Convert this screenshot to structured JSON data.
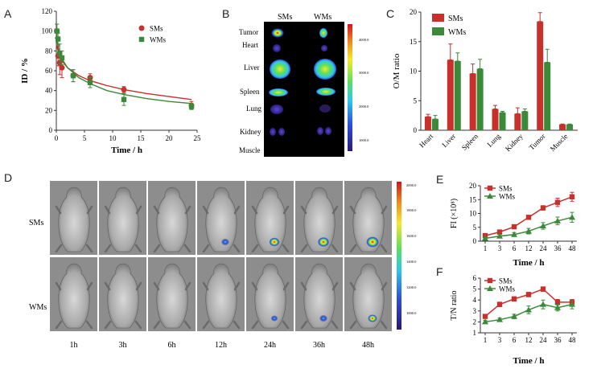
{
  "colors": {
    "sms": "#c8302c",
    "wms": "#3a8a3a",
    "axis": "#333333"
  },
  "panel_labels": [
    "A",
    "B",
    "C",
    "D",
    "E",
    "F"
  ],
  "chart_data": [
    {
      "panel": "A",
      "type": "scatter",
      "xlabel": "Time / h",
      "ylabel": "ID / %",
      "xlim": [
        0,
        25
      ],
      "ylim": [
        0,
        120
      ],
      "xticks": [
        0,
        5,
        10,
        15,
        20,
        25
      ],
      "yticks": [
        0,
        20,
        40,
        60,
        80,
        100,
        120
      ],
      "legend": "top-right",
      "series": [
        {
          "name": "SMs",
          "color_key": "sms",
          "marker": "circle",
          "x": [
            0.1,
            0.3,
            0.6,
            1,
            3,
            6,
            12,
            24
          ],
          "y": [
            100,
            75,
            68,
            63,
            55,
            53,
            41,
            25
          ],
          "err": [
            7,
            10,
            12,
            10,
            6,
            4,
            3,
            4
          ]
        },
        {
          "name": "WMs",
          "color_key": "wms",
          "marker": "square",
          "x": [
            0.1,
            0.3,
            0.6,
            1,
            3,
            6,
            12,
            24
          ],
          "y": [
            100,
            92,
            77,
            73,
            55,
            48,
            31,
            24
          ],
          "err": [
            7,
            6,
            10,
            7,
            6,
            5,
            6,
            3
          ]
        }
      ],
      "fit_curves": [
        {
          "name": "SMs",
          "color_key": "sms",
          "x": [
            0.1,
            0.5,
            1,
            2,
            4,
            6,
            9,
            12,
            16,
            20,
            24
          ],
          "y": [
            85,
            76,
            70,
            63,
            55,
            50,
            45,
            41,
            37,
            34,
            31
          ]
        },
        {
          "name": "WMs",
          "color_key": "wms",
          "x": [
            0.1,
            0.5,
            1,
            2,
            4,
            6,
            9,
            12,
            16,
            20,
            24
          ],
          "y": [
            90,
            80,
            72,
            63,
            53,
            47,
            40,
            36,
            32,
            29,
            27
          ]
        }
      ]
    },
    {
      "panel": "C",
      "type": "bar",
      "ylabel": "O/M ratio",
      "ylim": [
        0,
        20
      ],
      "yticks": [
        0,
        5,
        10,
        15,
        20
      ],
      "legend": "top-left",
      "categories": [
        "Heart",
        "Liver",
        "Spleen",
        "Lung",
        "Kidney",
        "Tumor",
        "Muscle"
      ],
      "series": [
        {
          "name": "SMs",
          "color_key": "sms",
          "values": [
            2.3,
            11.9,
            9.6,
            3.6,
            2.8,
            18.4,
            1.0
          ],
          "err": [
            0.4,
            2.7,
            1.6,
            0.6,
            1.0,
            1.5,
            0.05
          ]
        },
        {
          "name": "WMs",
          "color_key": "wms",
          "values": [
            1.9,
            11.7,
            10.4,
            3.0,
            3.2,
            11.5,
            1.0
          ],
          "err": [
            0.6,
            1.4,
            1.6,
            0.2,
            0.4,
            2.2,
            0.05
          ]
        }
      ]
    },
    {
      "panel": "E",
      "type": "line",
      "xlabel": "Time / h",
      "ylabel": "FI (×10⁸)",
      "categories": [
        "1",
        "3",
        "6",
        "12",
        "24",
        "36",
        "48"
      ],
      "ylim": [
        0,
        20
      ],
      "yticks": [
        0,
        5,
        10,
        15,
        20
      ],
      "legend": "top-left",
      "series": [
        {
          "name": "SMs",
          "color_key": "sms",
          "marker": "square",
          "values": [
            2.0,
            3.3,
            5.2,
            8.6,
            12.0,
            14.0,
            16.0
          ],
          "err": [
            0.4,
            0.5,
            0.6,
            0.7,
            0.8,
            1.5,
            1.6
          ]
        },
        {
          "name": "WMs",
          "color_key": "wms",
          "marker": "triangle",
          "values": [
            1.0,
            1.8,
            2.4,
            3.6,
            5.5,
            7.3,
            8.6
          ],
          "err": [
            0.4,
            0.6,
            0.7,
            1.0,
            1.2,
            1.4,
            1.8
          ]
        }
      ]
    },
    {
      "panel": "F",
      "type": "line",
      "xlabel": "Time / h",
      "ylabel": "T/N ratio",
      "categories": [
        "1",
        "3",
        "6",
        "12",
        "24",
        "36",
        "48"
      ],
      "ylim": [
        1,
        6
      ],
      "yticks": [
        1,
        2,
        3,
        4,
        5,
        6
      ],
      "legend": "top-left",
      "series": [
        {
          "name": "SMs",
          "color_key": "sms",
          "marker": "square",
          "values": [
            2.5,
            3.6,
            4.1,
            4.5,
            5.0,
            3.8,
            3.8
          ],
          "err": [
            0.15,
            0.2,
            0.2,
            0.2,
            0.2,
            0.25,
            0.25
          ]
        },
        {
          "name": "WMs",
          "color_key": "wms",
          "marker": "triangle",
          "values": [
            2.0,
            2.2,
            2.5,
            3.1,
            3.6,
            3.3,
            3.6
          ],
          "err": [
            0.15,
            0.15,
            0.2,
            0.35,
            0.4,
            0.3,
            0.4
          ]
        }
      ]
    }
  ],
  "panel_b": {
    "column_labels": [
      "SMs",
      "WMs"
    ],
    "row_labels": [
      "Tumor",
      "Heart",
      "Liver",
      "Spleen",
      "Lung",
      "Kidney",
      "Muscle"
    ],
    "colorbar_ticks": [
      "4000.0",
      "3000.0",
      "2000.0",
      "1000.0"
    ]
  },
  "panel_d": {
    "row_labels": [
      "SMs",
      "WMs"
    ],
    "time_labels": [
      "1h",
      "3h",
      "6h",
      "12h",
      "24h",
      "36h",
      "48h"
    ],
    "colorbar_ticks": [
      "2000.0",
      "1800.0",
      "1600.0",
      "1400.0",
      "1200.0",
      "1000.0"
    ],
    "tumor_signal": {
      "SMs": [
        0,
        0,
        0,
        0.45,
        0.7,
        0.85,
        1.0
      ],
      "WMs": [
        0,
        0,
        0,
        0,
        0.3,
        0.45,
        0.55
      ]
    }
  }
}
